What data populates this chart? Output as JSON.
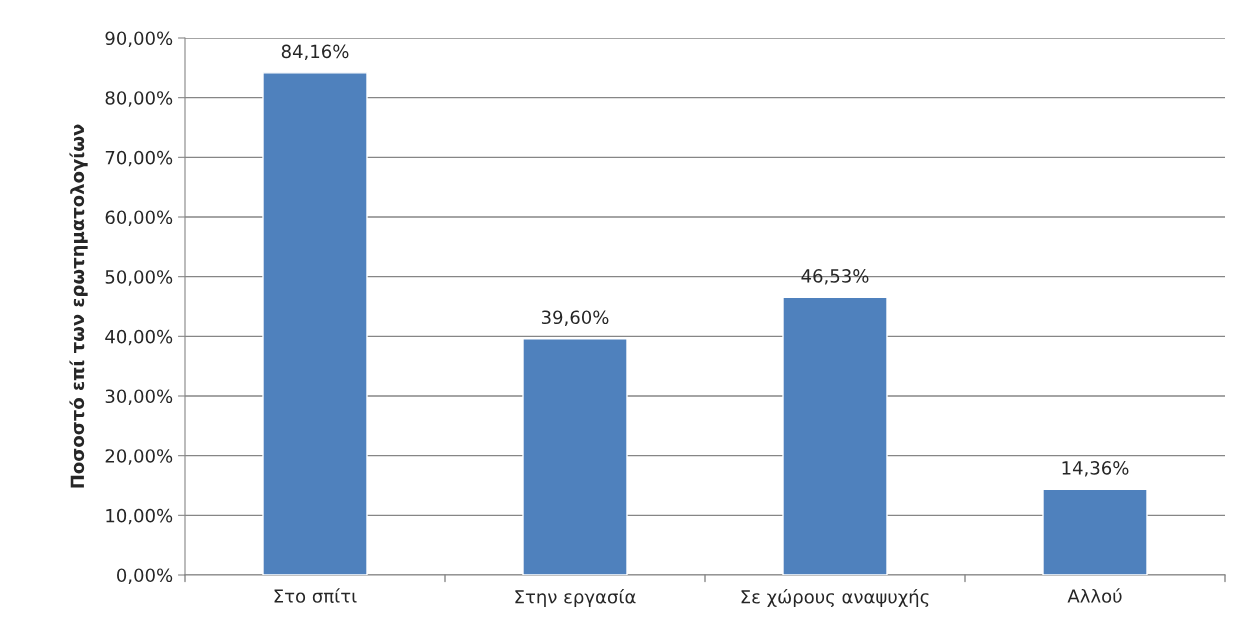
{
  "chart_data": {
    "type": "bar",
    "ylabel": "Ποσοστό επί των ερωτηματολογίων",
    "categories": [
      "Στο σπίτι",
      "Στην εργασία",
      "Σε χώρους αναψυχής",
      "Αλλού"
    ],
    "values": [
      84.16,
      39.6,
      46.53,
      14.36
    ],
    "color": "#4f81bd",
    "value_labels": [
      "84,16%",
      "39,60%",
      "46,53%",
      "14,36%"
    ],
    "ylim": [
      0,
      90
    ],
    "yticks": [
      {
        "value": 0,
        "label": "0,00%"
      },
      {
        "value": 10,
        "label": "10,00%"
      },
      {
        "value": 20,
        "label": "20,00%"
      },
      {
        "value": 30,
        "label": "30,00%"
      },
      {
        "value": 40,
        "label": "40,00%"
      },
      {
        "value": 50,
        "label": "50,00%"
      },
      {
        "value": 60,
        "label": "60,00%"
      },
      {
        "value": 70,
        "label": "70,00%"
      },
      {
        "value": 80,
        "label": "80,00%"
      },
      {
        "value": 90,
        "label": "90,00%"
      }
    ],
    "grid": "y",
    "legend": false
  }
}
